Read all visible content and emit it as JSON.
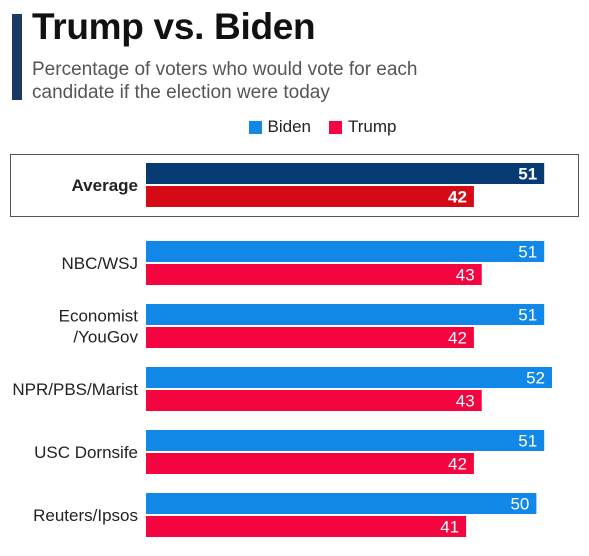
{
  "header": {
    "title": "Trump vs. Biden",
    "subtitle": "Percentage of voters who would vote for each candidate if the election were today"
  },
  "legend": {
    "biden_label": "Biden",
    "trump_label": "Trump"
  },
  "colors": {
    "accent": "#1b3a63",
    "biden": "#1187e8",
    "trump": "#f5053f",
    "average_biden": "#063a73",
    "average_trump": "#d60a16"
  },
  "chart_data": {
    "type": "bar",
    "orientation": "horizontal",
    "title": "Trump vs. Biden",
    "subtitle": "Percentage of voters who would vote for each candidate if the election were today",
    "categories": [
      "Average",
      "NBC/WSJ",
      "Economist\n/YouGov",
      "NPR/PBS/Marist",
      "USC Dornsife",
      "Reuters/Ipsos"
    ],
    "series": [
      {
        "name": "Biden",
        "values": [
          51,
          51,
          51,
          52,
          51,
          50
        ]
      },
      {
        "name": "Trump",
        "values": [
          42,
          43,
          42,
          43,
          42,
          41
        ]
      }
    ],
    "highlighted_category": "Average",
    "xlim": [
      0,
      52
    ],
    "grid": false,
    "legend_position": "top"
  }
}
